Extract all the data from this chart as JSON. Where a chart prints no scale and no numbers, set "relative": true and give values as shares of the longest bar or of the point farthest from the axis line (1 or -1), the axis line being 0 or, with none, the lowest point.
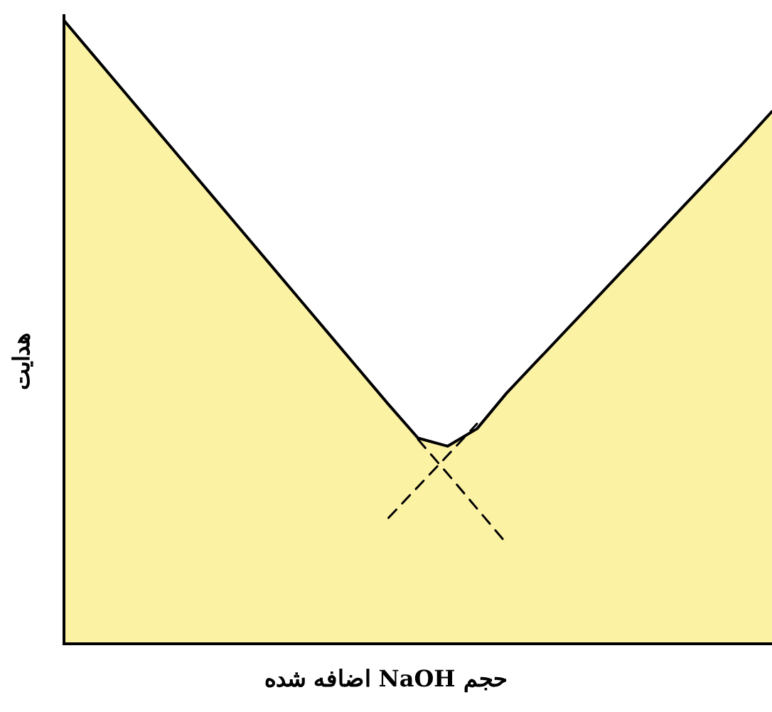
{
  "chart_data": {
    "type": "area",
    "xlabel": "حجم NaOH اضافه شده",
    "ylabel": "هدایت",
    "relative": true,
    "legend": false,
    "marker": "none",
    "categories": [
      null,
      null,
      null,
      null,
      null,
      null,
      null,
      null,
      null,
      null,
      null,
      null,
      null,
      null,
      null,
      null,
      null,
      null,
      null,
      null,
      null,
      null,
      null,
      null,
      null
    ],
    "series": [
      {
        "type": "area",
        "color": "#fcf2a4",
        "values": [
          1.0,
          0.944,
          0.888,
          0.832,
          0.776,
          0.72,
          0.664,
          0.608,
          0.552,
          0.496,
          0.44,
          0.384,
          0.33,
          0.317,
          0.345,
          0.402,
          0.452,
          0.502,
          0.552,
          0.602,
          0.652,
          0.702,
          0.752,
          0.802,
          0.854
        ]
      },
      {
        "type": "line",
        "color": "#000000",
        "line_style": "dashed",
        "values": [
          null,
          null,
          null,
          null,
          null,
          null,
          null,
          null,
          null,
          null,
          null,
          null,
          0.328,
          0.273,
          0.217,
          0.161,
          null,
          null,
          null,
          null,
          null,
          null,
          null,
          null,
          null
        ]
      },
      {
        "type": "line",
        "color": "#000000",
        "line_style": "dashed",
        "values": [
          null,
          null,
          null,
          null,
          null,
          null,
          null,
          null,
          null,
          null,
          null,
          0.202,
          0.252,
          0.302,
          0.353,
          null,
          null,
          null,
          null,
          null,
          null,
          null,
          null,
          null,
          null
        ]
      }
    ]
  }
}
